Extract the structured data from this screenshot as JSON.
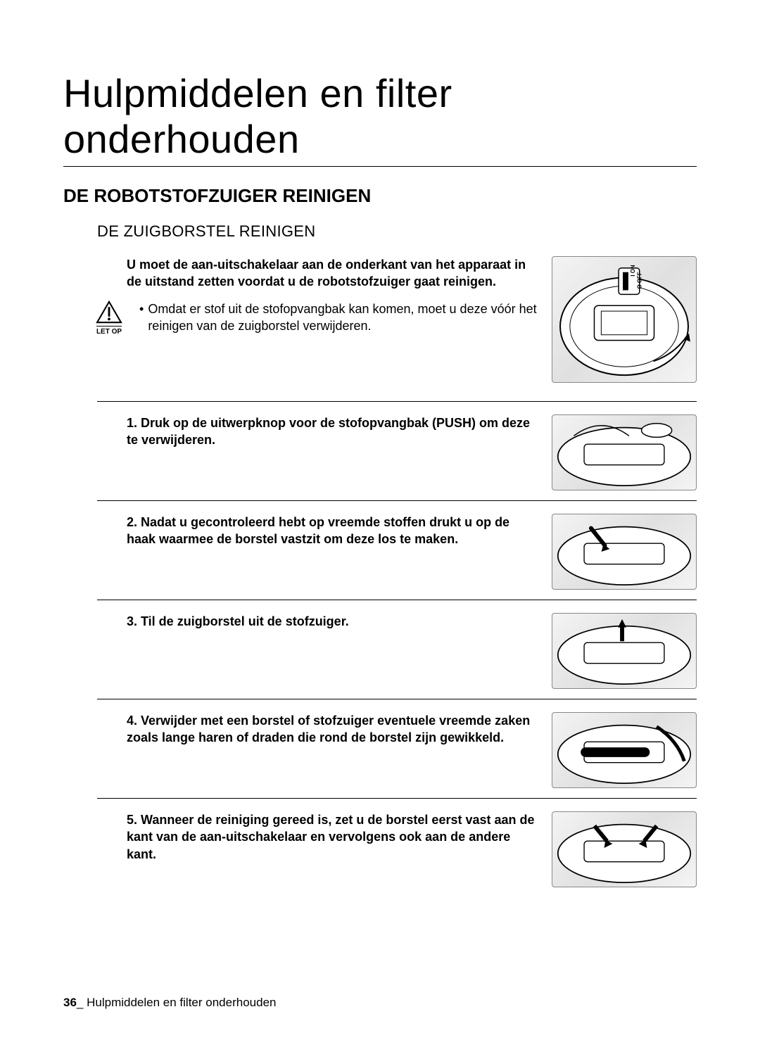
{
  "colors": {
    "text": "#000000",
    "background": "#ffffff",
    "rule": "#000000",
    "illus_bg": "#f0f0f0",
    "illus_stroke": "#000000"
  },
  "typography": {
    "chapter_fontsize": 56,
    "chapter_weight": 200,
    "section_fontsize": 26,
    "subsection_fontsize": 22,
    "body_fontsize": 18,
    "caution_label_fontsize": 10,
    "footer_fontsize": 17
  },
  "chapter_title": "Hulpmiddelen en filter onderhouden",
  "section_title": "DE ROBOTSTOFZUIGER REINIGEN",
  "subsection_title": "DE ZUIGBORSTEL REINIGEN",
  "intro_bold": "U moet de aan-uitschakelaar aan de onderkant van het apparaat in de uitstand zetten voordat u de robotstofzuiger gaat reinigen.",
  "caution": {
    "label": "LET OP",
    "bullet": "•",
    "text": "Omdat er stof uit de stofopvangbak kan komen, moet u deze vóór het reinigen van de zuigborstel verwijderen."
  },
  "intro_illustration": {
    "alt": "robot-vacuum-bottom-with-power-switch",
    "switch_on_label": "I ON",
    "switch_off_label": "O OFF"
  },
  "steps": [
    {
      "num": "1.",
      "text": "Druk op de uitwerpknop voor de stofopvangbak (PUSH) om deze te verwijderen.",
      "illustration_alt": "dust-bin-eject"
    },
    {
      "num": "2.",
      "text": "Nadat u gecontroleerd hebt op vreemde stoffen drukt u op de haak waarmee de borstel vastzit om deze los te maken.",
      "illustration_alt": "unlock-brush-hook"
    },
    {
      "num": "3.",
      "text": "Til de zuigborstel uit de stofzuiger.",
      "illustration_alt": "lift-out-brush"
    },
    {
      "num": "4.",
      "text": "Verwijder met een borstel of stofzuiger eventuele vreemde zaken zoals lange haren of draden die rond de borstel zijn gewikkeld.",
      "illustration_alt": "clean-brush-with-vacuum"
    },
    {
      "num": "5.",
      "text": "Wanneer de reiniging gereed is, zet u de borstel eerst vast aan de kant van de aan-uitschakelaar en vervolgens ook aan de andere kant.",
      "illustration_alt": "reinstall-brush"
    }
  ],
  "footer": {
    "page_number": "36",
    "separator": "_",
    "running_title": "Hulpmiddelen en filter onderhouden"
  }
}
